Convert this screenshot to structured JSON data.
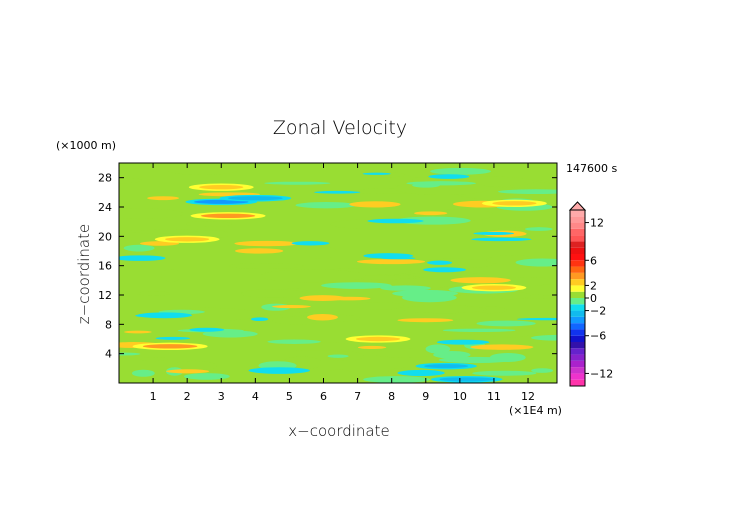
{
  "chart_data": {
    "type": "heatmap",
    "title": "Zonal Velocity",
    "xlabel": "x−coordinate",
    "ylabel": "z−coordinate",
    "x_unit": "(×1E4 m)",
    "y_unit": "(×1000 m)",
    "time_label": "147600 s",
    "xlim": [
      0,
      12.85
    ],
    "ylim": [
      0,
      30
    ],
    "x_ticks": [
      "1",
      "2",
      "3",
      "4",
      "5",
      "6",
      "7",
      "8",
      "9",
      "10",
      "11",
      "12"
    ],
    "y_ticks": [
      "4",
      "8",
      "12",
      "16",
      "20",
      "24",
      "28"
    ],
    "grid": false,
    "colorbar": {
      "placement": "right",
      "tick_labels": [
        "12",
        "6",
        "2",
        "0",
        "−2",
        "−6",
        "−12"
      ],
      "levels": [
        -14,
        -13,
        -12,
        -11,
        -10,
        -9,
        -8,
        -7,
        -6,
        -5,
        -4,
        -3,
        -2,
        -1,
        0,
        1,
        2,
        3,
        4,
        5,
        6,
        7,
        8,
        9,
        10,
        11,
        12,
        13,
        14
      ],
      "colors": [
        "#ff33aa",
        "#ee33cc",
        "#cc33cc",
        "#aa22cc",
        "#8822cc",
        "#6622cc",
        "#3311aa",
        "#1111cc",
        "#1133ee",
        "#1166ff",
        "#1199ff",
        "#11bbee",
        "#11ddee",
        "#66ee88",
        "#99dd33",
        "#ffff33",
        "#ffcc22",
        "#ff9922",
        "#ff6611",
        "#ff3311",
        "#ff1111",
        "#ee1111",
        "#dd2222",
        "#ff5555",
        "#ff6666",
        "#ff8888",
        "#ff9999",
        "#ffaaaa"
      ]
    },
    "features": [
      {
        "x": 3.0,
        "z": 24.7,
        "value": -4
      },
      {
        "x": 4.0,
        "z": 25.2,
        "value": -3
      },
      {
        "x": 3.2,
        "z": 22.8,
        "value": 3
      },
      {
        "x": 3.0,
        "z": 26.7,
        "value": 2.5
      },
      {
        "x": 2.0,
        "z": 19.6,
        "value": 2.5
      },
      {
        "x": 1.5,
        "z": 5.0,
        "value": 3
      },
      {
        "x": 11.6,
        "z": 24.5,
        "value": 2.5
      },
      {
        "x": 11.0,
        "z": 13.0,
        "value": 2.5
      },
      {
        "x": 9.6,
        "z": 2.3,
        "value": -2.5
      },
      {
        "x": 10.2,
        "z": 0.5,
        "value": -3
      },
      {
        "x": 7.6,
        "z": 6.0,
        "value": 2.5
      },
      {
        "x": 4.7,
        "z": 1.7,
        "value": -2
      }
    ]
  }
}
